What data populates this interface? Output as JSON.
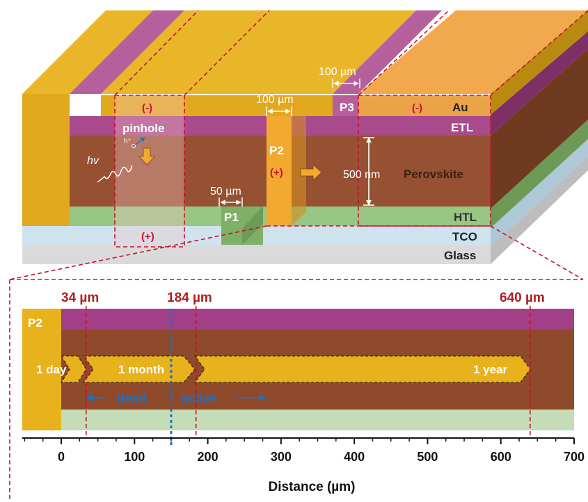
{
  "top_diagram": {
    "layers": {
      "au": "Au",
      "etl": "ETL",
      "perovskite": "Perovskite",
      "htl": "HTL",
      "tco": "TCO",
      "glass": "Glass"
    },
    "scribes": {
      "p1": "P1",
      "p2": "P2",
      "p3": "P3"
    },
    "dimensions": {
      "p3_width": "100 µm",
      "p2_width": "100 µm",
      "p1_width": "50 µm",
      "perovskite_thickness": "500 nm"
    },
    "labels": {
      "minus_left": "(-)",
      "minus_right": "(-)",
      "plus_p2": "(+)",
      "plus_bottom": "(+)",
      "pinhole": "pinhole",
      "photon": "hv",
      "hole": "h⁺"
    },
    "colors": {
      "au": "#E8B21C",
      "etl": "#A33F86",
      "perovskite": "#8E4A2A",
      "htl": "#8DBB73",
      "tco": "#C4DDEB",
      "glass": "#D6D6D6",
      "annotation_red": "#C00000",
      "annotation_blue": "#1F6FC2"
    }
  },
  "bottom_diagram": {
    "p2_label": "P2",
    "markers": {
      "m34": "34 µm",
      "m184": "184 µm",
      "m640": "640 µm"
    },
    "arrows": {
      "day": "1 day",
      "month": "1 month",
      "year": "1 year"
    },
    "regions": {
      "dead": "dead",
      "active": "active"
    }
  },
  "chart_data": {
    "type": "diagram-axis",
    "xlabel": "Distance (µm)",
    "xlim": [
      -50,
      700
    ],
    "ticks": [
      0,
      100,
      200,
      300,
      400,
      500,
      600,
      700
    ],
    "tick_labels": [
      "0",
      "100",
      "200",
      "300",
      "400",
      "500",
      "600",
      "700"
    ],
    "marker_lines": [
      34,
      150,
      184,
      640
    ],
    "growth_fronts": [
      {
        "label": "1 day",
        "x": 34
      },
      {
        "label": "1 month",
        "x": 184
      },
      {
        "label": "1 year",
        "x": 640
      }
    ]
  }
}
